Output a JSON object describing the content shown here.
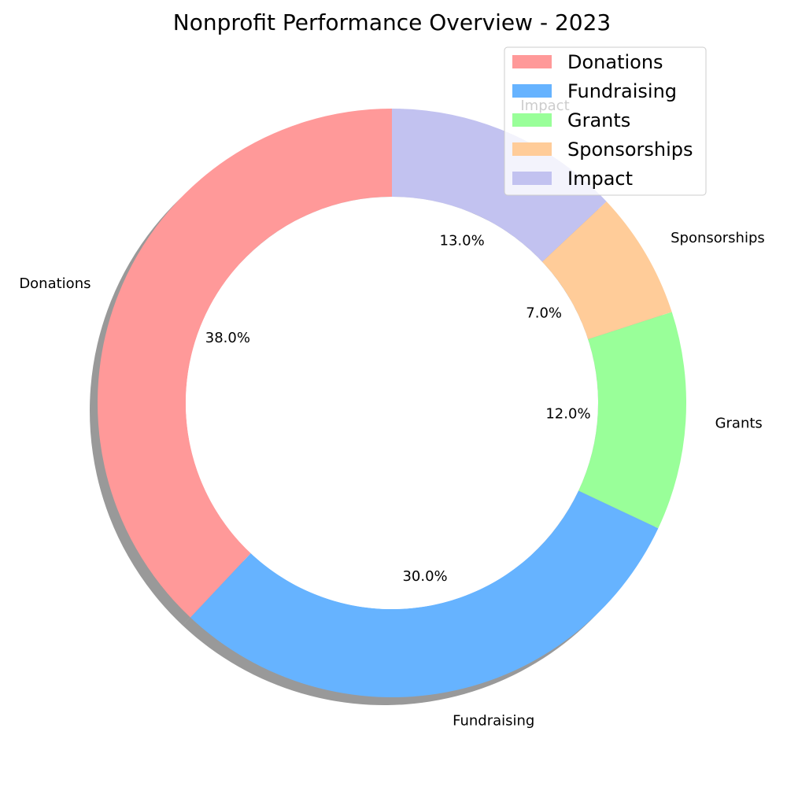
{
  "chart_data": {
    "type": "pie",
    "title": "Nonprofit Performance Overview - 2023",
    "categories": [
      "Donations",
      "Fundraising",
      "Grants",
      "Sponsorships",
      "Impact"
    ],
    "values": [
      38.0,
      30.0,
      12.0,
      7.0,
      13.0
    ],
    "value_labels": [
      "38.0%",
      "30.0%",
      "12.0%",
      "7.0%",
      "13.0%"
    ],
    "colors": [
      "#ff9999",
      "#66b3ff",
      "#99ff99",
      "#ffcc99",
      "#c2c2f0"
    ],
    "donut": true,
    "start_angle_deg": 90,
    "direction": "counterclockwise",
    "shadow": true,
    "legend_position": "top-right",
    "legend_entries": [
      "Donations",
      "Fundraising",
      "Grants",
      "Sponsorships",
      "Impact"
    ]
  }
}
